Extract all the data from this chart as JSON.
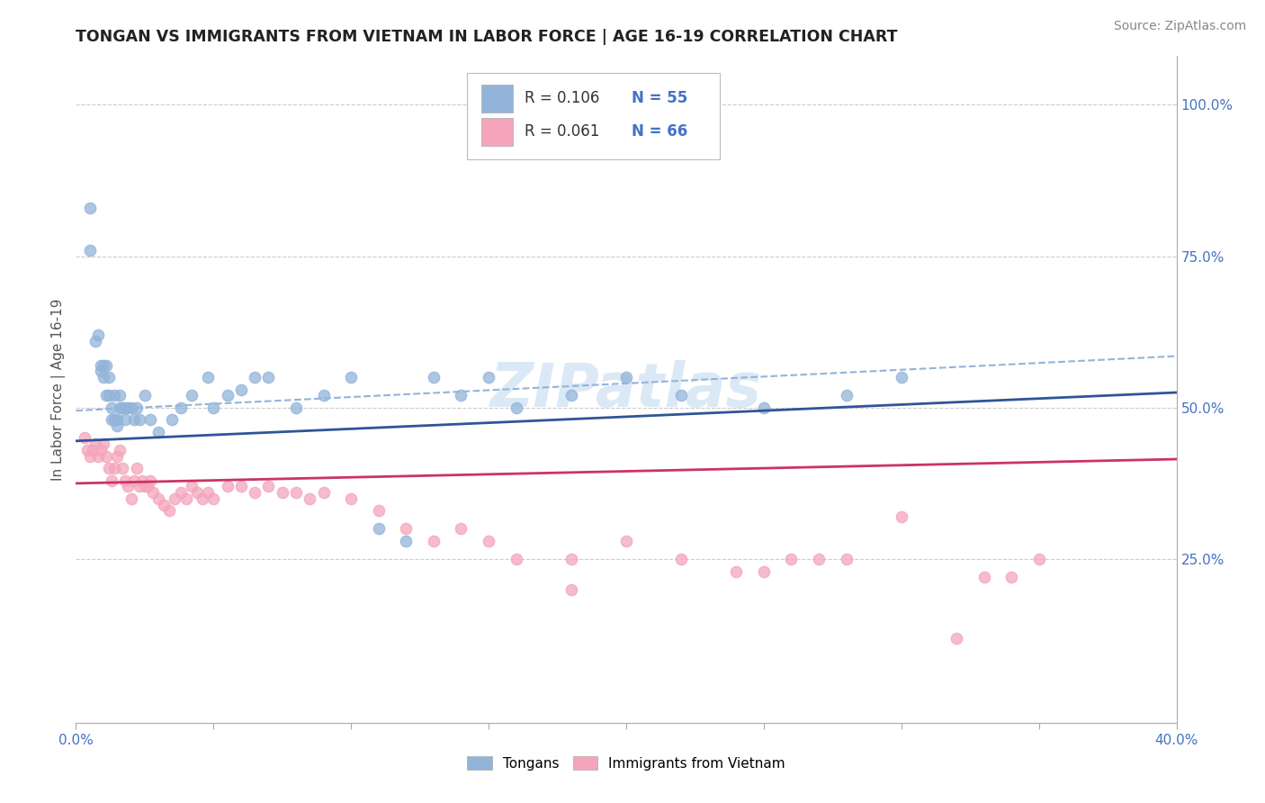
{
  "title": "TONGAN VS IMMIGRANTS FROM VIETNAM IN LABOR FORCE | AGE 16-19 CORRELATION CHART",
  "source": "Source: ZipAtlas.com",
  "ylabel": "In Labor Force | Age 16-19",
  "xlim": [
    0.0,
    0.4
  ],
  "ylim": [
    -0.02,
    1.08
  ],
  "right_ylim": [
    -0.02,
    1.08
  ],
  "xticks": [
    0.0,
    0.05,
    0.1,
    0.15,
    0.2,
    0.25,
    0.3,
    0.35,
    0.4
  ],
  "xticklabels": [
    "0.0%",
    "",
    "",
    "",
    "",
    "",
    "",
    "",
    "40.0%"
  ],
  "yticks_right": [
    0.25,
    0.5,
    0.75,
    1.0
  ],
  "ytick_right_labels": [
    "25.0%",
    "50.0%",
    "75.0%",
    "100.0%"
  ],
  "legend_r1": "R = 0.106",
  "legend_n1": "N = 55",
  "legend_r2": "R = 0.061",
  "legend_n2": "N = 66",
  "tongan_color": "#92b4d9",
  "vietnam_color": "#f4a5bc",
  "trend_color_tongan": "#2f5597",
  "trend_color_vietnam": "#cc3366",
  "trend_dashed_color": "#92b4d9",
  "watermark": "ZIPatlas",
  "background_color": "#ffffff",
  "grid_color": "#cccccc",
  "tongan_x": [
    0.005,
    0.005,
    0.007,
    0.008,
    0.009,
    0.009,
    0.01,
    0.01,
    0.011,
    0.011,
    0.012,
    0.012,
    0.013,
    0.013,
    0.014,
    0.014,
    0.015,
    0.015,
    0.016,
    0.016,
    0.017,
    0.018,
    0.018,
    0.019,
    0.02,
    0.021,
    0.022,
    0.023,
    0.025,
    0.027,
    0.03,
    0.035,
    0.038,
    0.042,
    0.048,
    0.05,
    0.055,
    0.06,
    0.065,
    0.07,
    0.08,
    0.09,
    0.1,
    0.11,
    0.12,
    0.13,
    0.14,
    0.15,
    0.16,
    0.18,
    0.2,
    0.22,
    0.25,
    0.28,
    0.3
  ],
  "tongan_y": [
    0.83,
    0.76,
    0.61,
    0.62,
    0.57,
    0.56,
    0.57,
    0.55,
    0.52,
    0.57,
    0.52,
    0.55,
    0.5,
    0.48,
    0.52,
    0.48,
    0.48,
    0.47,
    0.5,
    0.52,
    0.5,
    0.48,
    0.5,
    0.5,
    0.5,
    0.48,
    0.5,
    0.48,
    0.52,
    0.48,
    0.46,
    0.48,
    0.5,
    0.52,
    0.55,
    0.5,
    0.52,
    0.53,
    0.55,
    0.55,
    0.5,
    0.52,
    0.55,
    0.3,
    0.28,
    0.55,
    0.52,
    0.55,
    0.5,
    0.52,
    0.55,
    0.52,
    0.5,
    0.52,
    0.55
  ],
  "vietnam_x": [
    0.003,
    0.004,
    0.005,
    0.006,
    0.007,
    0.008,
    0.009,
    0.01,
    0.011,
    0.012,
    0.013,
    0.014,
    0.015,
    0.016,
    0.017,
    0.018,
    0.019,
    0.02,
    0.021,
    0.022,
    0.023,
    0.024,
    0.025,
    0.026,
    0.027,
    0.028,
    0.03,
    0.032,
    0.034,
    0.036,
    0.038,
    0.04,
    0.042,
    0.044,
    0.046,
    0.048,
    0.05,
    0.055,
    0.06,
    0.065,
    0.07,
    0.075,
    0.08,
    0.085,
    0.09,
    0.1,
    0.11,
    0.12,
    0.13,
    0.14,
    0.15,
    0.16,
    0.18,
    0.2,
    0.22,
    0.24,
    0.26,
    0.28,
    0.3,
    0.32,
    0.34,
    0.25,
    0.18,
    0.27,
    0.33,
    0.35
  ],
  "vietnam_y": [
    0.45,
    0.43,
    0.42,
    0.43,
    0.44,
    0.42,
    0.43,
    0.44,
    0.42,
    0.4,
    0.38,
    0.4,
    0.42,
    0.43,
    0.4,
    0.38,
    0.37,
    0.35,
    0.38,
    0.4,
    0.37,
    0.38,
    0.37,
    0.37,
    0.38,
    0.36,
    0.35,
    0.34,
    0.33,
    0.35,
    0.36,
    0.35,
    0.37,
    0.36,
    0.35,
    0.36,
    0.35,
    0.37,
    0.37,
    0.36,
    0.37,
    0.36,
    0.36,
    0.35,
    0.36,
    0.35,
    0.33,
    0.3,
    0.28,
    0.3,
    0.28,
    0.25,
    0.25,
    0.28,
    0.25,
    0.23,
    0.25,
    0.25,
    0.32,
    0.12,
    0.22,
    0.23,
    0.2,
    0.25,
    0.22,
    0.25
  ],
  "tongan_trend_x0": 0.0,
  "tongan_trend_y0": 0.445,
  "tongan_trend_x1": 0.4,
  "tongan_trend_y1": 0.525,
  "vietnam_trend_x0": 0.0,
  "vietnam_trend_y0": 0.375,
  "vietnam_trend_x1": 0.4,
  "vietnam_trend_y1": 0.415,
  "dashed_trend_x0": 0.0,
  "dashed_trend_y0": 0.495,
  "dashed_trend_x1": 0.4,
  "dashed_trend_y1": 0.585
}
